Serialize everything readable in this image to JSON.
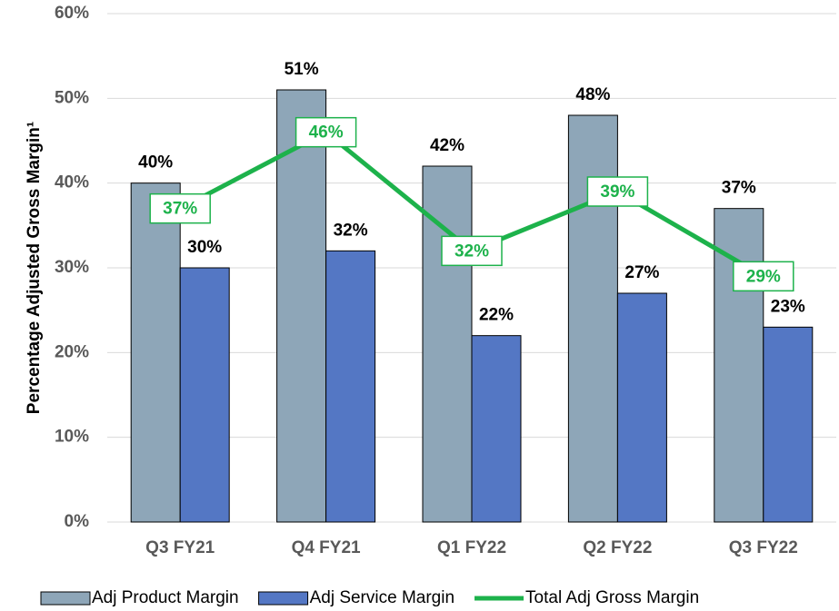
{
  "chart_data": {
    "type": "bar",
    "ylabel": "Percentage Adjusted Gross Margin¹",
    "categories": [
      "Q3 FY21",
      "Q4 FY21",
      "Q1 FY22",
      "Q2 FY22",
      "Q3 FY22"
    ],
    "series": [
      {
        "name": "Adj Product Margin",
        "color": "#8ea6b8",
        "values": [
          40,
          51,
          42,
          48,
          37
        ],
        "value_labels": [
          "40%",
          "51%",
          "42%",
          "48%",
          "37%"
        ]
      },
      {
        "name": "Adj Service Margin",
        "color": "#5477c4",
        "values": [
          30,
          32,
          22,
          27,
          23
        ],
        "value_labels": [
          "30%",
          "32%",
          "22%",
          "27%",
          "23%"
        ]
      },
      {
        "name": "Total Adj Gross Margin",
        "type": "line",
        "color": "#1db24b",
        "values": [
          37,
          46,
          32,
          39,
          29
        ],
        "value_labels": [
          "37%",
          "46%",
          "32%",
          "39%",
          "29%"
        ]
      }
    ],
    "ylim": [
      0,
      60
    ],
    "yticks": [
      {
        "value": 0,
        "label": "0%"
      },
      {
        "value": 10,
        "label": "10%"
      },
      {
        "value": 20,
        "label": "20%"
      },
      {
        "value": 30,
        "label": "30%"
      },
      {
        "value": 40,
        "label": "40%"
      },
      {
        "value": 50,
        "label": "50%"
      },
      {
        "value": 60,
        "label": "60%"
      }
    ],
    "grid": true,
    "legend": "bottom"
  }
}
